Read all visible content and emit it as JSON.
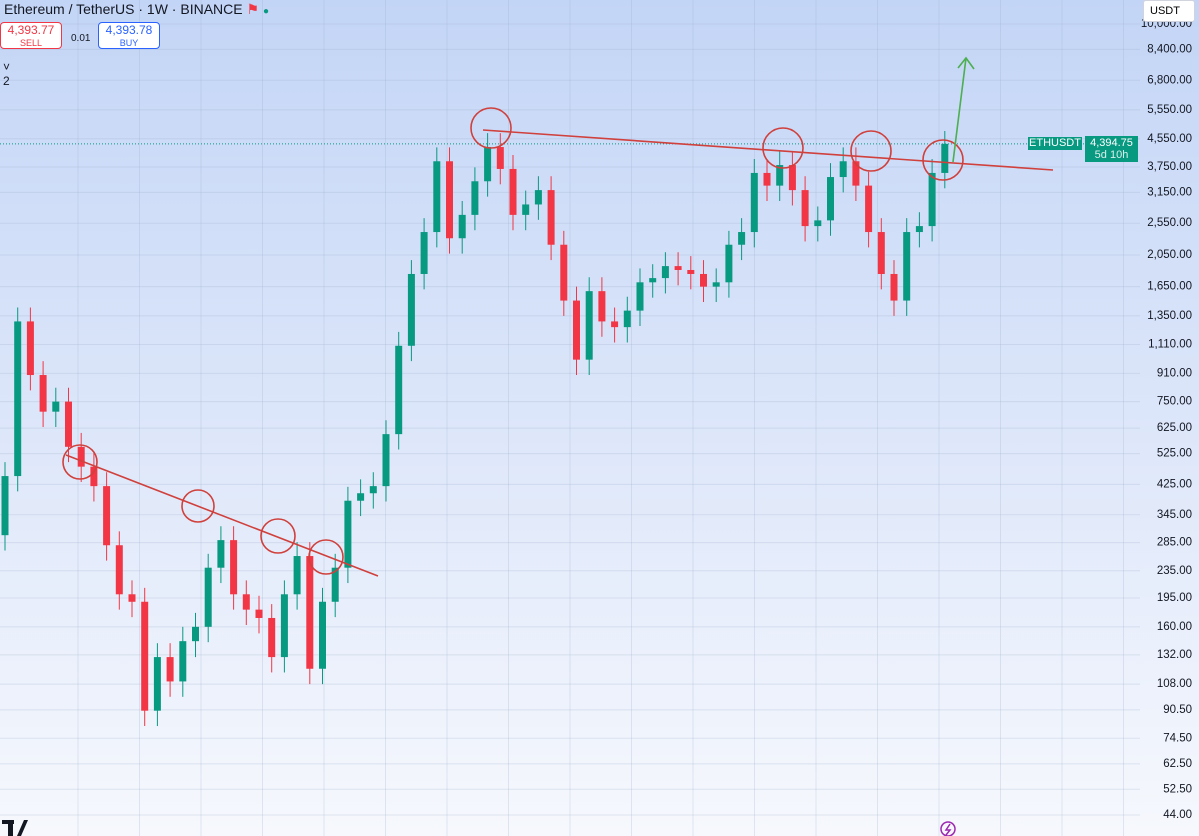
{
  "header": {
    "title": "Ethereum / TetherUS · 1W · BINANCE",
    "sell_price": "4,393.77",
    "sell": "SELL",
    "spread": "0.01",
    "buy_price": "4,393.78",
    "buy": "BUY",
    "indicators": "2",
    "currency": "USDT"
  },
  "chart_data": {
    "type": "candlestick",
    "symbol": "ETHUSDT",
    "price_label": "4,394.75",
    "countdown": "5d 10h",
    "log_scale": true,
    "grid": true,
    "up_color": "#089981",
    "down_color": "#f23645",
    "ylim": [
      38.1,
      11790
    ],
    "yticks": [
      {
        "value": 10000,
        "label": "10,000.00"
      },
      {
        "value": 8400,
        "label": "8,400.00"
      },
      {
        "value": 6800,
        "label": "6,800.00"
      },
      {
        "value": 5550,
        "label": "5,550.00"
      },
      {
        "value": 4550,
        "label": "4,550.00"
      },
      {
        "value": 3750,
        "label": "3,750.00"
      },
      {
        "value": 3150,
        "label": "3,150.00"
      },
      {
        "value": 2550,
        "label": "2,550.00"
      },
      {
        "value": 2050,
        "label": "2,050.00"
      },
      {
        "value": 1650,
        "label": "1,650.00"
      },
      {
        "value": 1350,
        "label": "1,350.00"
      },
      {
        "value": 1110,
        "label": "1,110.00"
      },
      {
        "value": 910,
        "label": "910.00"
      },
      {
        "value": 750,
        "label": "750.00"
      },
      {
        "value": 625,
        "label": "625.00"
      },
      {
        "value": 525,
        "label": "525.00"
      },
      {
        "value": 425,
        "label": "425.00"
      },
      {
        "value": 345,
        "label": "345.00"
      },
      {
        "value": 285,
        "label": "285.00"
      },
      {
        "value": 235,
        "label": "235.00"
      },
      {
        "value": 195,
        "label": "195.00"
      },
      {
        "value": 160,
        "label": "160.00"
      },
      {
        "value": 132,
        "label": "132.00"
      },
      {
        "value": 108,
        "label": "108.00"
      },
      {
        "value": 90.5,
        "label": "90.50"
      },
      {
        "value": 74.5,
        "label": "74.50"
      },
      {
        "value": 62.5,
        "label": "62.50"
      },
      {
        "value": 52.5,
        "label": "52.50"
      },
      {
        "value": 44,
        "label": "44.00"
      }
    ],
    "series": [
      {
        "name": "ETHUSDT",
        "open": [
          300,
          450,
          1300,
          900,
          700,
          750,
          550,
          480,
          420,
          280,
          200,
          190,
          90,
          130,
          110,
          145,
          160,
          240,
          290,
          200,
          180,
          170,
          130,
          200,
          260,
          120,
          190,
          240,
          380,
          400,
          420,
          600,
          1100,
          1800,
          2400,
          3900,
          2300,
          2700,
          3400,
          4300,
          3700,
          2700,
          2900,
          3200,
          2200,
          1500,
          1000,
          1600,
          1300,
          1250,
          1400,
          1700,
          1750,
          1900,
          1850,
          1800,
          1650,
          1700,
          2200,
          2400,
          3600,
          3300,
          3800,
          3200,
          2500,
          2600,
          3500,
          3900,
          3300,
          2400,
          1800,
          1500,
          2400,
          2500,
          3600
        ],
        "high": [
          495,
          1430,
          1430,
          990,
          825,
          825,
          605,
          528,
          462,
          308,
          220,
          209,
          143,
          143,
          160,
          176,
          264,
          319,
          319,
          220,
          198,
          187,
          220,
          286,
          286,
          209,
          264,
          418,
          440,
          462,
          660,
          1210,
          1980,
          2640,
          4290,
          4290,
          2970,
          3740,
          4730,
          4730,
          4070,
          3190,
          3520,
          3520,
          2420,
          1650,
          1760,
          1760,
          1430,
          1540,
          1870,
          1925,
          2090,
          2090,
          2035,
          1980,
          1870,
          2420,
          2640,
          3960,
          3960,
          4180,
          4180,
          3520,
          2860,
          3850,
          4290,
          4290,
          3630,
          2640,
          1980,
          2640,
          2750,
          3960,
          4800
        ],
        "low": [
          270,
          405,
          810,
          630,
          630,
          495,
          432,
          378,
          252,
          180,
          171,
          81,
          81,
          99,
          99,
          130,
          144,
          216,
          180,
          162,
          153,
          117,
          117,
          180,
          108,
          108,
          171,
          216,
          342,
          360,
          378,
          540,
          990,
          1620,
          2160,
          2070,
          2070,
          2430,
          3060,
          3330,
          2430,
          2430,
          2610,
          1980,
          1350,
          900,
          900,
          1170,
          1125,
          1125,
          1260,
          1530,
          1575,
          1665,
          1620,
          1485,
          1485,
          1530,
          1980,
          2160,
          2970,
          2970,
          2880,
          2250,
          2250,
          2340,
          3150,
          2970,
          2160,
          1620,
          1350,
          1350,
          2160,
          2250,
          3240
        ],
        "close": [
          450,
          1300,
          900,
          700,
          750,
          550,
          480,
          420,
          280,
          200,
          190,
          90,
          130,
          110,
          145,
          160,
          240,
          290,
          200,
          180,
          170,
          130,
          200,
          260,
          120,
          190,
          240,
          380,
          400,
          420,
          600,
          1100,
          1800,
          2400,
          3900,
          2300,
          2700,
          3400,
          4300,
          3700,
          2700,
          2900,
          3200,
          2200,
          1500,
          1000,
          1600,
          1300,
          1250,
          1400,
          1700,
          1750,
          1900,
          1850,
          1800,
          1650,
          1700,
          2200,
          2400,
          3600,
          3300,
          3800,
          3200,
          2500,
          2600,
          3500,
          3900,
          3300,
          2400,
          1800,
          1500,
          2400,
          2500,
          3600,
          4394.75
        ]
      }
    ]
  }
}
